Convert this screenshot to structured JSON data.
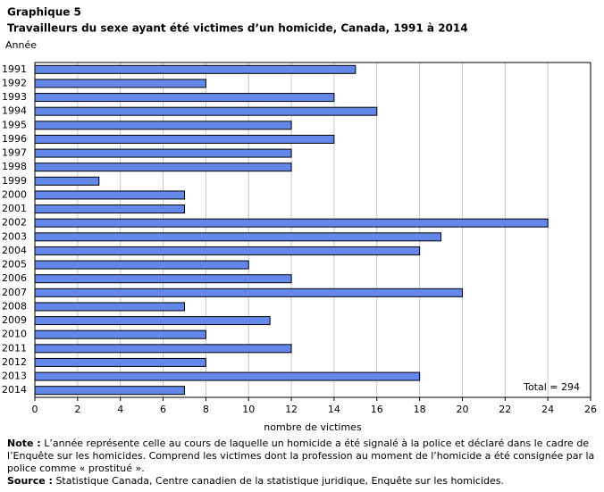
{
  "chart_data": {
    "type": "bar",
    "orientation": "horizontal",
    "title_label": "Graphique 5",
    "title": "Travailleurs du sexe ayant été victimes d’un homicide, Canada, 1991 à 2014",
    "y_axis_label": "Année",
    "x_axis_label": "nombre de victimes",
    "categories": [
      "1991",
      "1992",
      "1993",
      "1994",
      "1995",
      "1996",
      "1997",
      "1998",
      "1999",
      "2000",
      "2001",
      "2002",
      "2003",
      "2004",
      "2005",
      "2006",
      "2007",
      "2008",
      "2009",
      "2010",
      "2011",
      "2012",
      "2013",
      "2014"
    ],
    "values": [
      15,
      8,
      14,
      16,
      12,
      14,
      12,
      12,
      3,
      7,
      7,
      24,
      19,
      18,
      10,
      12,
      20,
      7,
      11,
      8,
      12,
      8,
      18,
      7
    ],
    "color": "#6488ea",
    "xlim": [
      0,
      26
    ],
    "xticks": [
      0,
      2,
      4,
      6,
      8,
      10,
      12,
      14,
      16,
      18,
      20,
      22,
      24,
      26
    ],
    "grid": true,
    "annotation": "Total = 294",
    "note_label": "Note :",
    "note": "L’année représente celle au cours de laquelle un homicide a été signalé à la police et déclaré dans le cadre de l’Enquête sur les homicides. Comprend les victimes dont la profession au moment de l’homicide a été consignée par la police comme « prostitué ».",
    "source_label": "Source :",
    "source": "Statistique Canada, Centre canadien de la statistique juridique, Enquête sur les homicides."
  }
}
